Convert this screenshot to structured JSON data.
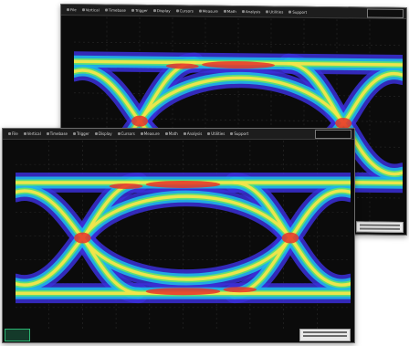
{
  "colors": {
    "background": "#0b0b0b",
    "grid": "#2a2a2a",
    "band_outer": "#3b2fd8",
    "band_mid": "#1fb7e8",
    "band_green": "#62e36a",
    "band_yellow": "#f4e54a",
    "band_red": "#e8322a",
    "accent_green": "#2bb673"
  },
  "windows": [
    {
      "id": "back",
      "toolbar": [
        "File",
        "Vertical",
        "Timebase",
        "Trigger",
        "Display",
        "Cursors",
        "Measure",
        "Math",
        "Analysis",
        "Utilities",
        "Support"
      ],
      "y_ticks": [
        "",
        "",
        "",
        "",
        "",
        "",
        "",
        "",
        ""
      ],
      "x_ticks": [
        "",
        "",
        "",
        "",
        "",
        "",
        "",
        "",
        "",
        ""
      ]
    },
    {
      "id": "front",
      "toolbar": [
        "File",
        "Vertical",
        "Timebase",
        "Trigger",
        "Display",
        "Cursors",
        "Measure",
        "Math",
        "Analysis",
        "Utilities",
        "Support"
      ],
      "y_ticks": [
        "",
        "",
        "",
        "",
        "",
        "",
        "",
        "",
        ""
      ],
      "x_ticks": [
        "",
        "",
        "",
        "",
        "",
        "",
        "",
        "",
        "",
        ""
      ]
    }
  ]
}
